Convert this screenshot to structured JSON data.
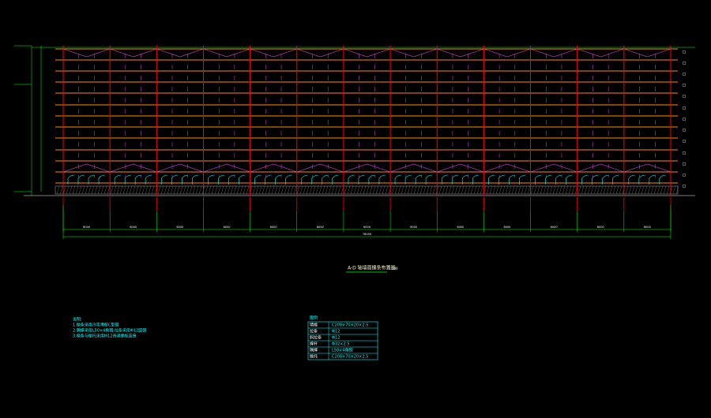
{
  "drawing": {
    "title": "A-D 轴墙面檩条布置图",
    "scale": "1:100",
    "dimensions": {
      "segments": [
        "6000",
        "6000",
        "6000",
        "6000",
        "6000",
        "6000",
        "6000",
        "6000",
        "6000",
        "6000",
        "6000",
        "6000",
        "6000"
      ],
      "total": "78000"
    },
    "notes": {
      "header": "说明:",
      "lines": [
        "1.檩条采用冷弯薄壁C型钢",
        "2.隅撑采用L50×4角钢,拉条采用Φ12圆钢",
        "3.檩条与檩托采用M12普通螺栓连接"
      ]
    },
    "legend": {
      "header": "图例",
      "rows": [
        [
          "墙檩",
          "C200×70×20×2.5"
        ],
        [
          "拉条",
          "Φ12"
        ],
        [
          "斜拉条",
          "Φ12"
        ],
        [
          "撑杆",
          "Φ32×2.5"
        ],
        [
          "隅撑",
          "L50×4角钢"
        ],
        [
          "檩托",
          "C200×70×20×2.5"
        ]
      ]
    }
  }
}
